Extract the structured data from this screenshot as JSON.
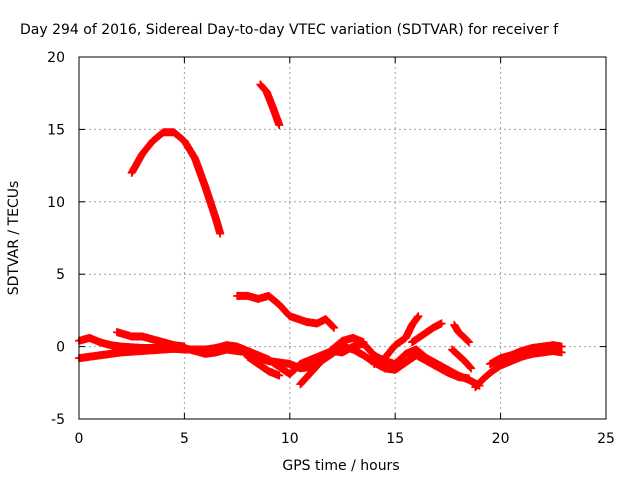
{
  "chart_data": {
    "type": "scatter",
    "title": "Day 294 of 2016, Sidereal Day-to-day VTEC variation (SDTVAR) for receiver f",
    "xlabel": "GPS time / hours",
    "ylabel": "SDTVAR / TECUs",
    "xlim": [
      0,
      25
    ],
    "ylim": [
      -5,
      20
    ],
    "xticks": [
      0,
      5,
      10,
      15,
      20,
      25
    ],
    "yticks": [
      -5,
      0,
      5,
      10,
      15,
      20
    ],
    "grid": true,
    "marker": "plus",
    "color": "#ff0000",
    "series": [
      {
        "points": [
          [
            2.5,
            12.0
          ],
          [
            3.0,
            13.3
          ],
          [
            3.5,
            14.2
          ],
          [
            4.0,
            14.8
          ],
          [
            4.5,
            14.8
          ],
          [
            5.0,
            14.2
          ],
          [
            5.5,
            13.0
          ],
          [
            6.0,
            11.0
          ],
          [
            6.5,
            8.8
          ],
          [
            6.7,
            7.8
          ]
        ]
      },
      {
        "points": [
          [
            8.6,
            18.1
          ],
          [
            8.9,
            17.6
          ],
          [
            9.2,
            16.5
          ],
          [
            9.5,
            15.3
          ]
        ]
      },
      {
        "points": [
          [
            7.5,
            3.5
          ],
          [
            8.0,
            3.5
          ],
          [
            8.5,
            3.3
          ],
          [
            9.0,
            3.5
          ],
          [
            9.5,
            2.9
          ],
          [
            10.0,
            2.1
          ],
          [
            10.8,
            1.7
          ],
          [
            11.3,
            1.6
          ],
          [
            11.7,
            1.9
          ],
          [
            12.1,
            1.3
          ]
        ]
      },
      {
        "points": [
          [
            0.0,
            0.4
          ],
          [
            0.5,
            0.6
          ],
          [
            1.0,
            0.3
          ],
          [
            1.5,
            0.1
          ],
          [
            2.0,
            0.0
          ],
          [
            3.0,
            -0.1
          ],
          [
            4.0,
            -0.1
          ],
          [
            5.0,
            -0.2
          ],
          [
            6.0,
            -0.2
          ],
          [
            6.5,
            -0.1
          ],
          [
            7.0,
            0.1
          ],
          [
            7.5,
            0.0
          ],
          [
            8.0,
            -0.3
          ],
          [
            8.5,
            -0.6
          ],
          [
            9.0,
            -0.9
          ],
          [
            9.5,
            -1.4
          ],
          [
            10.0,
            -1.9
          ],
          [
            10.5,
            -1.2
          ],
          [
            11.0,
            -0.9
          ],
          [
            11.5,
            -0.6
          ],
          [
            12.0,
            -0.3
          ],
          [
            12.5,
            -0.4
          ],
          [
            13.0,
            0.0
          ],
          [
            13.5,
            0.2
          ],
          [
            14.0,
            -0.6
          ],
          [
            14.5,
            -1.0
          ],
          [
            15.0,
            -1.2
          ],
          [
            15.5,
            -0.5
          ],
          [
            16.0,
            -0.2
          ],
          [
            16.5,
            -0.8
          ],
          [
            17.0,
            -1.2
          ],
          [
            17.5,
            -1.6
          ],
          [
            18.0,
            -2.0
          ],
          [
            18.5,
            -2.3
          ],
          [
            19.0,
            -2.7
          ]
        ]
      },
      {
        "points": [
          [
            0.0,
            -0.8
          ],
          [
            1.0,
            -0.6
          ],
          [
            2.0,
            -0.4
          ],
          [
            3.0,
            -0.3
          ],
          [
            4.0,
            -0.2
          ],
          [
            5.0,
            -0.1
          ],
          [
            5.5,
            -0.3
          ],
          [
            6.0,
            -0.5
          ],
          [
            6.5,
            -0.4
          ],
          [
            7.0,
            -0.2
          ],
          [
            7.5,
            -0.3
          ],
          [
            8.0,
            -0.4
          ],
          [
            8.5,
            -0.8
          ],
          [
            9.0,
            -1.0
          ],
          [
            9.5,
            -1.1
          ],
          [
            10.0,
            -1.2
          ],
          [
            10.5,
            -1.5
          ],
          [
            11.0,
            -1.4
          ],
          [
            11.5,
            -1.0
          ],
          [
            12.0,
            -0.5
          ],
          [
            12.5,
            0.0
          ],
          [
            13.0,
            -0.2
          ],
          [
            13.5,
            -0.6
          ],
          [
            14.0,
            -1.1
          ],
          [
            14.5,
            -1.5
          ],
          [
            15.0,
            -1.6
          ],
          [
            15.5,
            -1.1
          ],
          [
            16.0,
            -0.6
          ],
          [
            16.5,
            -1.0
          ],
          [
            17.0,
            -1.4
          ],
          [
            17.5,
            -1.8
          ],
          [
            18.0,
            -2.1
          ],
          [
            18.5,
            -2.2
          ]
        ]
      },
      {
        "points": [
          [
            1.8,
            1.0
          ],
          [
            2.5,
            0.7
          ],
          [
            3.0,
            0.7
          ],
          [
            3.5,
            0.5
          ],
          [
            4.0,
            0.3
          ],
          [
            4.5,
            0.1
          ],
          [
            5.0,
            0.0
          ]
        ]
      },
      {
        "points": [
          [
            8.0,
            -0.7
          ],
          [
            8.5,
            -1.2
          ],
          [
            9.0,
            -1.7
          ],
          [
            9.5,
            -2.0
          ]
        ]
      },
      {
        "points": [
          [
            10.5,
            -2.6
          ],
          [
            11.0,
            -1.8
          ],
          [
            11.5,
            -1.0
          ],
          [
            12.0,
            -0.2
          ],
          [
            12.5,
            0.4
          ],
          [
            13.0,
            0.6
          ],
          [
            13.5,
            0.3
          ]
        ]
      },
      {
        "points": [
          [
            14.0,
            -1.2
          ],
          [
            14.5,
            -0.8
          ],
          [
            15.0,
            0.1
          ],
          [
            15.5,
            0.6
          ],
          [
            15.8,
            1.5
          ],
          [
            16.1,
            2.1
          ]
        ]
      },
      {
        "points": [
          [
            15.8,
            0.3
          ],
          [
            16.3,
            0.8
          ],
          [
            16.8,
            1.3
          ],
          [
            17.2,
            1.6
          ]
        ]
      },
      {
        "points": [
          [
            17.7,
            -0.2
          ],
          [
            18.0,
            -0.6
          ],
          [
            18.3,
            -1.0
          ],
          [
            18.6,
            -1.5
          ]
        ]
      },
      {
        "points": [
          [
            17.8,
            1.5
          ],
          [
            18.0,
            1.0
          ],
          [
            18.3,
            0.6
          ],
          [
            18.5,
            0.3
          ]
        ]
      },
      {
        "points": [
          [
            18.8,
            -2.8
          ],
          [
            19.2,
            -2.2
          ],
          [
            19.6,
            -1.7
          ],
          [
            20.0,
            -1.3
          ],
          [
            20.5,
            -1.0
          ],
          [
            21.0,
            -0.7
          ],
          [
            21.5,
            -0.5
          ],
          [
            22.0,
            -0.4
          ],
          [
            22.5,
            -0.3
          ],
          [
            22.9,
            -0.4
          ]
        ]
      },
      {
        "points": [
          [
            19.5,
            -1.2
          ],
          [
            20.0,
            -0.8
          ],
          [
            20.5,
            -0.6
          ],
          [
            21.0,
            -0.3
          ],
          [
            21.5,
            -0.1
          ],
          [
            22.0,
            0.0
          ],
          [
            22.5,
            0.1
          ],
          [
            22.9,
            0.0
          ]
        ]
      }
    ]
  }
}
